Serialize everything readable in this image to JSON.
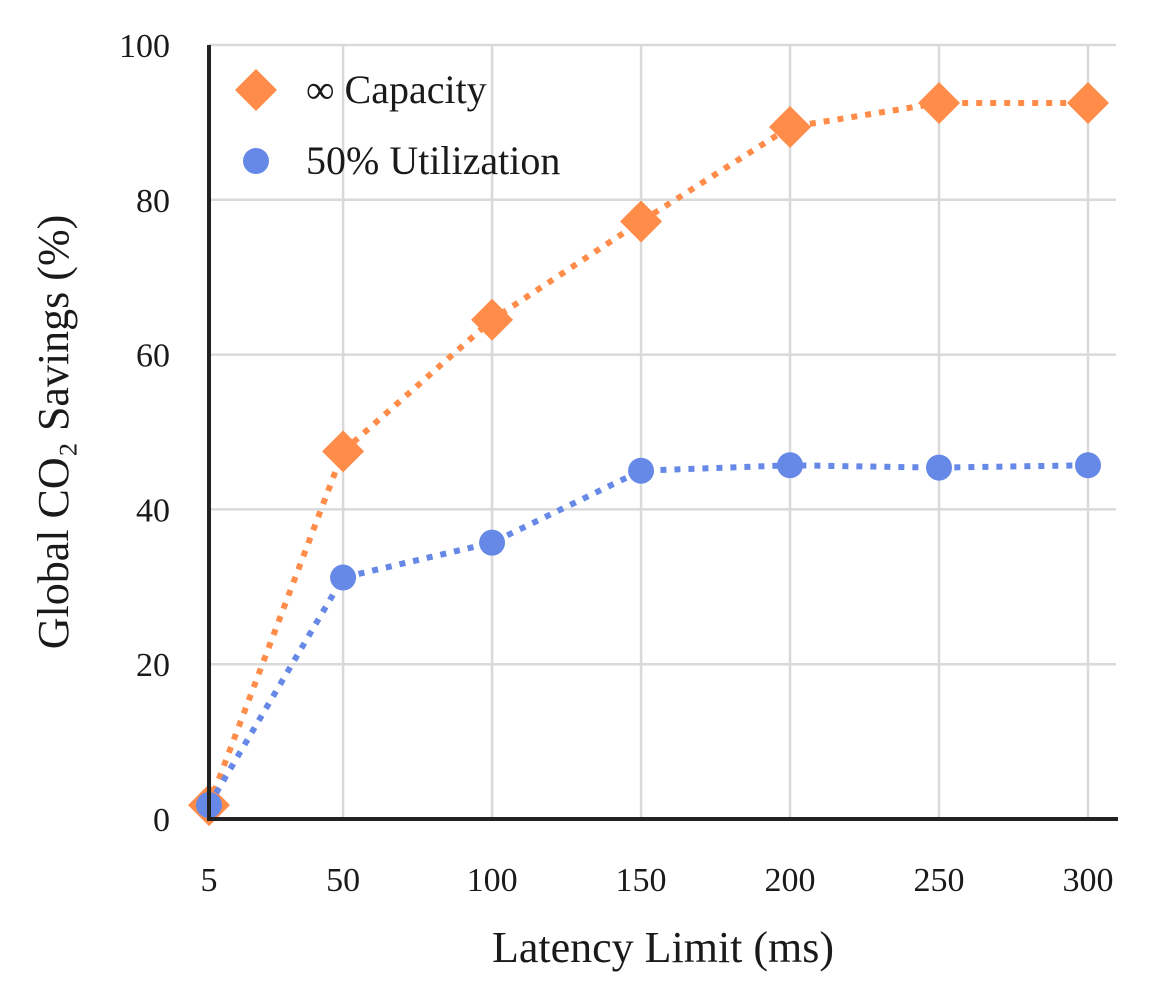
{
  "chart_data": {
    "type": "line",
    "xlabel": "Latency Limit (ms)",
    "ylabel": "Global CO₂ Savings (%)",
    "x": [
      5,
      50,
      100,
      150,
      200,
      250,
      300
    ],
    "xticks": [
      "5",
      "50",
      "100",
      "150",
      "200",
      "250",
      "300"
    ],
    "yticks": [
      "0",
      "20",
      "40",
      "60",
      "80",
      "100"
    ],
    "xlim": [
      5,
      310
    ],
    "ylim": [
      0,
      100
    ],
    "grid": true,
    "legend_position": "top-left",
    "series": [
      {
        "name": "∞ Capacity",
        "marker": "diamond",
        "line_style": "dotted",
        "color": "#ff8c48",
        "values": [
          1.8,
          47.5,
          64.5,
          77.2,
          89.4,
          92.5,
          92.5
        ]
      },
      {
        "name": "50% Utilization",
        "marker": "circle",
        "line_style": "dotted",
        "color": "#6688e6",
        "values": [
          1.8,
          31.2,
          35.7,
          45.0,
          45.7,
          45.4,
          45.7
        ]
      }
    ]
  }
}
